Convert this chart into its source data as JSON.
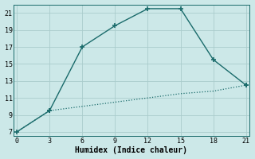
{
  "xlabel": "Humidex (Indice chaleur)",
  "bg_color": "#cce8e8",
  "grid_color": "#aacccc",
  "line_color": "#1a6b6b",
  "upper_x": [
    0,
    3,
    6,
    9,
    12,
    15,
    18,
    21
  ],
  "upper_y": [
    7,
    9.5,
    17,
    19.5,
    21.5,
    21.5,
    15.5,
    12.5
  ],
  "lower_x": [
    0,
    3,
    6,
    9,
    12,
    15,
    18,
    21
  ],
  "lower_y": [
    7,
    9.5,
    10.0,
    10.5,
    11.0,
    11.5,
    11.8,
    12.5
  ],
  "lower_marker_indices": [
    1,
    7
  ],
  "xlim": [
    -0.3,
    21.3
  ],
  "ylim": [
    6.5,
    22.0
  ],
  "xticks": [
    0,
    3,
    6,
    9,
    12,
    15,
    18,
    21
  ],
  "yticks": [
    7,
    9,
    11,
    13,
    15,
    17,
    19,
    21
  ],
  "marker": "+",
  "marker_size": 5,
  "marker_lw": 1.2,
  "upper_lw": 1.0,
  "lower_lw": 0.9
}
